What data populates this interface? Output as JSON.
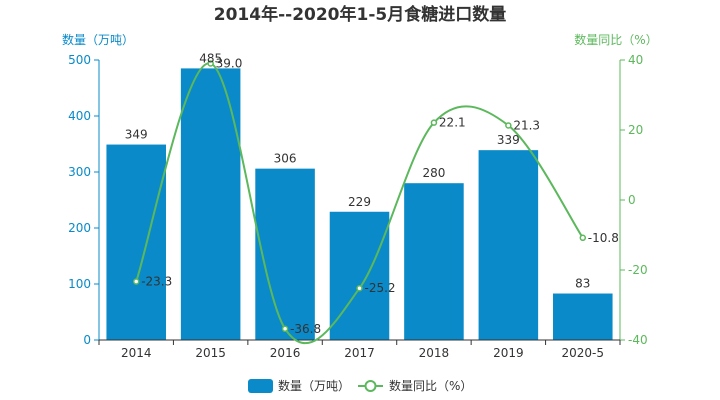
{
  "colors": {
    "bar": "#0a8ac8",
    "line": "#5cb85c",
    "left_axis": "#0a8ac8",
    "right_axis": "#5cb85c",
    "text": "#333333"
  },
  "chart_data": {
    "type": "bar",
    "title": "2014年--2020年1-5月食糖进口数量",
    "categories": [
      "2014",
      "2015",
      "2016",
      "2017",
      "2018",
      "2019",
      "2020-5"
    ],
    "ylabel": "数量（万吨）",
    "ylabel_right": "数量同比（%）",
    "ylim": [
      0,
      500
    ],
    "ylim_right": [
      -40,
      40
    ],
    "yticks": [
      0,
      100,
      200,
      300,
      400,
      500
    ],
    "yticks_right": [
      -40,
      -20,
      0,
      20,
      40
    ],
    "legend_position": "bottom",
    "grid": false,
    "series": [
      {
        "name": "数量（万吨）",
        "type": "bar",
        "axis": "left",
        "values": [
          349,
          485,
          306,
          229,
          280,
          339,
          83
        ]
      },
      {
        "name": "数量同比（%）",
        "type": "line",
        "smooth": true,
        "axis": "right",
        "values": [
          -23.3,
          39.0,
          -36.8,
          -25.2,
          22.1,
          21.3,
          -10.8
        ]
      }
    ]
  }
}
